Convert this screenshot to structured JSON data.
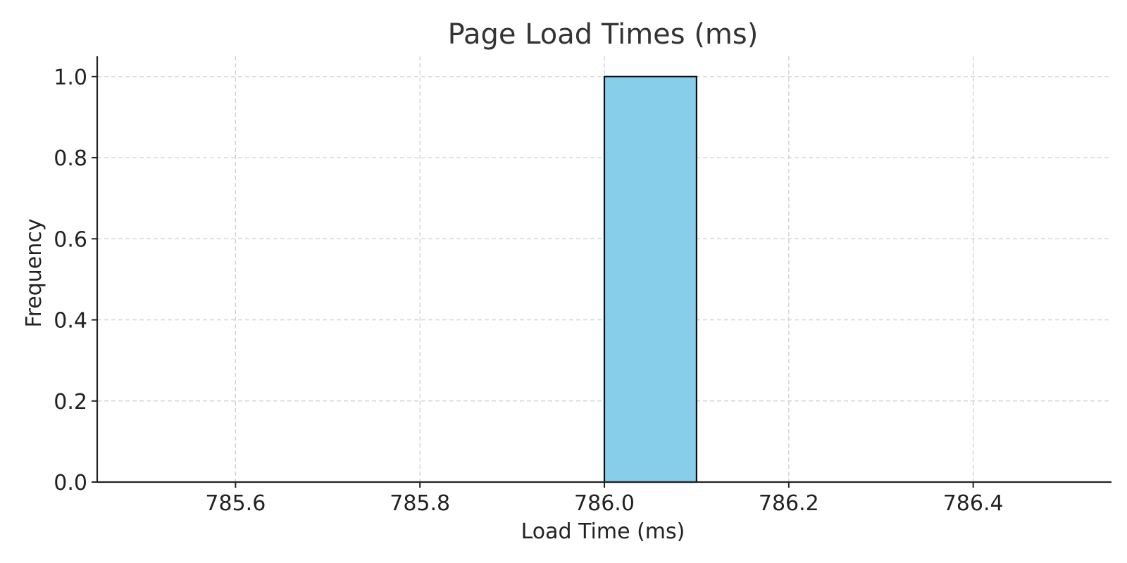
{
  "chart_data": {
    "type": "bar",
    "title": "Page Load Times (ms)",
    "xlabel": "Load Time (ms)",
    "ylabel": "Frequency",
    "xlim": [
      785.45,
      786.55
    ],
    "ylim": [
      0,
      1.05
    ],
    "xticks": [
      785.6,
      785.8,
      786.0,
      786.2,
      786.4
    ],
    "xtick_labels": [
      "785.6",
      "785.8",
      "786.0",
      "786.2",
      "786.4"
    ],
    "yticks": [
      0.0,
      0.2,
      0.4,
      0.6,
      0.8,
      1.0
    ],
    "ytick_labels": [
      "0.0",
      "0.2",
      "0.4",
      "0.6",
      "0.8",
      "1.0"
    ],
    "grid": true,
    "bar_color": "#87CEEB",
    "bins": [
      {
        "x0": 786.0,
        "x1": 786.1,
        "value": 1.0
      }
    ]
  }
}
